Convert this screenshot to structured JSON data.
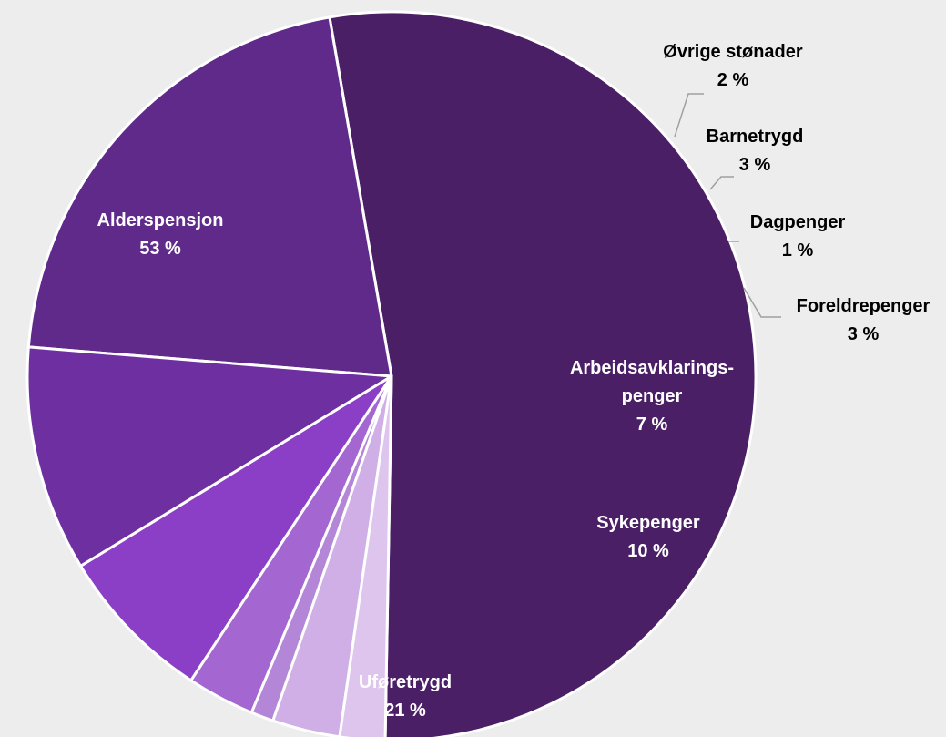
{
  "chart_data": {
    "type": "pie",
    "title": "",
    "series": [
      {
        "values": [
          53,
          21,
          10,
          7,
          3,
          1,
          3,
          2
        ],
        "labels": [
          "Alderspensjon",
          "Uføretrygd",
          "Sykepenger",
          "Arbeidsavklarings-penger",
          "Foreldrepenger",
          "Dagpenger",
          "Barnetrygd",
          "Øvrige stønader"
        ]
      }
    ],
    "slices": [
      {
        "label": "Alderspensjon",
        "value": 53,
        "value_label": "53 %",
        "color": "#4a1f66"
      },
      {
        "label": "Uføretrygd",
        "value": 21,
        "value_label": "21 %",
        "color": "#5f2a8a"
      },
      {
        "label": "Sykepenger",
        "value": 10,
        "value_label": "10 %",
        "color": "#6e30a0"
      },
      {
        "label": "Arbeidsavklarings-penger",
        "label_lines": [
          "Arbeidsavklarings-",
          "penger"
        ],
        "value": 7,
        "value_label": "7 %",
        "color": "#8a3fc6"
      },
      {
        "label": "Foreldrepenger",
        "value": 3,
        "value_label": "3 %",
        "color": "#a467d2"
      },
      {
        "label": "Dagpenger",
        "value": 1,
        "value_label": "1 %",
        "color": "#b386d8"
      },
      {
        "label": "Barnetrygd",
        "value": 3,
        "value_label": "3 %",
        "color": "#cfafe6"
      },
      {
        "label": "Øvrige stønader",
        "value": 2,
        "value_label": "2 %",
        "color": "#dec5ee"
      }
    ],
    "legend": "none",
    "grid": false
  }
}
